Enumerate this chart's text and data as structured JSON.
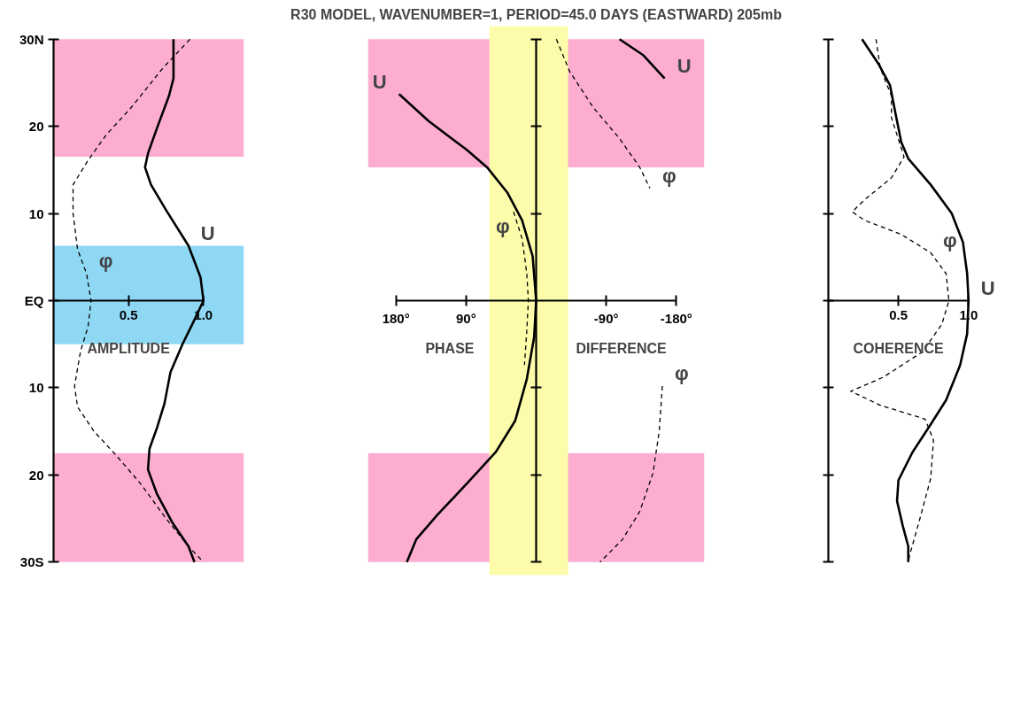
{
  "chart_data": [
    {
      "type": "line",
      "xlabel": "AMPLITUDE",
      "xlim": [
        0,
        1
      ],
      "ylim": [
        -30,
        30
      ],
      "xticks": [
        0.5,
        {
          "value": 1,
          "label": "1.0"
        }
      ],
      "yticks": [
        {
          "value": 30,
          "label": "30N"
        },
        {
          "value": 20,
          "label": "20"
        },
        {
          "value": 10,
          "label": "10"
        },
        {
          "value": 0,
          "label": "EQ"
        },
        {
          "value": -10,
          "label": "10"
        },
        {
          "value": -20,
          "label": "20"
        },
        {
          "value": -30,
          "label": "30S"
        }
      ],
      "bands": [
        {
          "axis": "y",
          "from": 16.5,
          "to": 30,
          "color": "#fcadd0"
        },
        {
          "axis": "y",
          "from": -30,
          "to": -17.5,
          "color": "#fcadd0"
        },
        {
          "axis": "y",
          "from": -5,
          "to": 6.3,
          "color": "#8fd8f4"
        }
      ],
      "series": [
        {
          "color": "#000000",
          "line_style": "solid",
          "x": [
            0.8,
            0.8,
            0.77,
            0.69,
            0.63,
            0.61,
            0.65,
            0.75,
            0.9,
            0.98,
            1.0,
            0.94,
            0.86,
            0.78,
            0.74,
            0.69,
            0.64,
            0.63,
            0.69,
            0.79,
            0.9,
            0.94
          ],
          "values": [
            30,
            25.5,
            23.5,
            19.8,
            16.9,
            15.3,
            13.3,
            10.4,
            6.3,
            2.7,
            0,
            -2.2,
            -5,
            -8.2,
            -11.8,
            -14.6,
            -17,
            -19.4,
            -22.2,
            -25.4,
            -28.2,
            -30
          ]
        },
        {
          "color": "#000000",
          "line_style": "dashed",
          "x": [
            0.91,
            0.73,
            0.52,
            0.35,
            0.23,
            0.13,
            0.13,
            0.16,
            0.22,
            0.25,
            0.23,
            0.18,
            0.14,
            0.16,
            0.27,
            0.42,
            0.58,
            0.75,
            0.9,
            1.0
          ],
          "values": [
            30,
            26.7,
            22.2,
            19,
            16.1,
            13.3,
            10,
            5.9,
            3.1,
            0,
            -3,
            -5.8,
            -9.8,
            -12.2,
            -15,
            -17.8,
            -21,
            -25,
            -28.2,
            -30
          ]
        }
      ],
      "annotations": [
        {
          "text": "U",
          "x": 0.9,
          "y": 6.3
        },
        {
          "text": "φ",
          "x": 0.22,
          "y": 3.1
        }
      ]
    },
    {
      "type": "line",
      "title": "R30 MODEL, WAVENUMBER=1, PERIOD=45.0 DAYS (EASTWARD) 205mb",
      "xlabel": "PHASE DIFFERENCE",
      "xlim": [
        180,
        -180
      ],
      "ylim": [
        -30,
        30
      ],
      "tick_labels": "x",
      "xticks": [
        {
          "value": 180,
          "label": "180°"
        },
        {
          "value": 90,
          "label": "90°"
        },
        {
          "value": -90,
          "label": "-90°"
        },
        {
          "value": -180,
          "label": "-180°"
        }
      ],
      "yticks": [
        {
          "value": 30,
          "label": null
        },
        {
          "value": 20,
          "label": null
        },
        {
          "value": 10,
          "label": null
        },
        {
          "value": -10,
          "label": null
        },
        {
          "value": -20,
          "label": null
        },
        {
          "value": -30,
          "label": null
        }
      ],
      "bands": [
        {
          "axis": "y",
          "from": 15.3,
          "to": 30,
          "color": "#fcadd0"
        },
        {
          "axis": "y",
          "from": -30,
          "to": -17.5,
          "color": "#fcadd0"
        },
        {
          "axis": "x",
          "from": 60,
          "to": -41,
          "color": "#fdfcaa"
        }
      ],
      "series": [
        {
          "color": "#000000",
          "line_style": "solid",
          "x": [
            176,
            138,
            89,
            63,
            37,
            18,
            4.5,
            0,
            2.6,
            12,
            27,
            52,
            89,
            127,
            154,
            166,
            null,
            -107,
            -137,
            -165
          ],
          "values": [
            23.7,
            20.6,
            17.3,
            15.3,
            12.4,
            9.2,
            5.1,
            0,
            -4.2,
            -9,
            -13.8,
            -17.4,
            -21,
            -24.6,
            -27.4,
            -30,
            null,
            30,
            28.2,
            25.5
          ]
        },
        {
          "color": "#000000",
          "line_style": "dashed",
          "x": [
            -26,
            -43,
            -73,
            -107,
            -133,
            -146,
            null,
            29,
            18,
            12,
            10,
            12,
            15,
            null,
            -162,
            -158,
            -150,
            -133,
            -111,
            -82
          ],
          "values": [
            30,
            26.3,
            22.2,
            18.6,
            15.3,
            12.9,
            null,
            10.2,
            7.1,
            3.1,
            0,
            -3.4,
            -7.4,
            null,
            -9.8,
            -15,
            -19.8,
            -24.2,
            -27.4,
            -30
          ]
        }
      ],
      "annotations": [
        {
          "text": "U",
          "x": 176,
          "y": 23.7
        },
        {
          "text": "U",
          "x": -165,
          "y": 25.5
        },
        {
          "text": "φ",
          "x": -146,
          "y": 12.9
        },
        {
          "text": "φ",
          "x": 18,
          "y": 7.1
        },
        {
          "text": "φ",
          "x": -162,
          "y": -9.8
        }
      ]
    },
    {
      "type": "line",
      "xlabel": "COHERENCE",
      "xlim": [
        0,
        1
      ],
      "ylim": [
        -30,
        30
      ],
      "tick_labels": "x",
      "xticks": [
        0.5,
        {
          "value": 1,
          "label": "1.0"
        }
      ],
      "yticks": [
        {
          "value": 30,
          "label": null
        },
        {
          "value": 20,
          "label": null
        },
        {
          "value": 10,
          "label": null
        },
        {
          "value": 0,
          "label": null
        },
        {
          "value": -10,
          "label": null
        },
        {
          "value": -20,
          "label": null
        },
        {
          "value": -30,
          "label": null
        }
      ],
      "series": [
        {
          "color": "#000000",
          "line_style": "solid",
          "x": [
            0.24,
            0.36,
            0.44,
            0.48,
            0.52,
            0.57,
            0.73,
            0.88,
            0.96,
            0.99,
            1.0,
            0.99,
            0.94,
            0.84,
            0.73,
            0.6,
            0.5,
            0.49,
            0.53,
            0.57,
            0.57
          ],
          "values": [
            30,
            27.1,
            24.7,
            21.4,
            18.2,
            16.3,
            13.3,
            10,
            6.7,
            3.1,
            0,
            -3.8,
            -7.4,
            -11.4,
            -14.2,
            -17.4,
            -20.6,
            -23,
            -25.8,
            -28.2,
            -30
          ]
        },
        {
          "color": "#000000",
          "line_style": "dashed",
          "x": [
            0.34,
            0.37,
            0.45,
            0.45,
            0.54,
            0.45,
            0.26,
            0.17,
            0.26,
            0.52,
            0.73,
            0.84,
            0.86,
            0.81,
            0.67,
            0.39,
            0.16,
            0.37,
            0.69,
            0.75,
            0.73,
            0.65,
            0.58,
            0.57
          ],
          "values": [
            30,
            26.7,
            23.5,
            21,
            16.5,
            14.1,
            11.6,
            10.2,
            9.2,
            7.6,
            5.5,
            3.1,
            0,
            -2.7,
            -5.9,
            -8.8,
            -10.4,
            -12,
            -13.6,
            -16,
            -20.4,
            -25.2,
            -29.2,
            -30
          ]
        }
      ],
      "annotations": [
        {
          "text": "φ",
          "x": 0.73,
          "y": 5.5
        },
        {
          "text": "U",
          "x": 1.0,
          "y": 0
        }
      ]
    }
  ]
}
